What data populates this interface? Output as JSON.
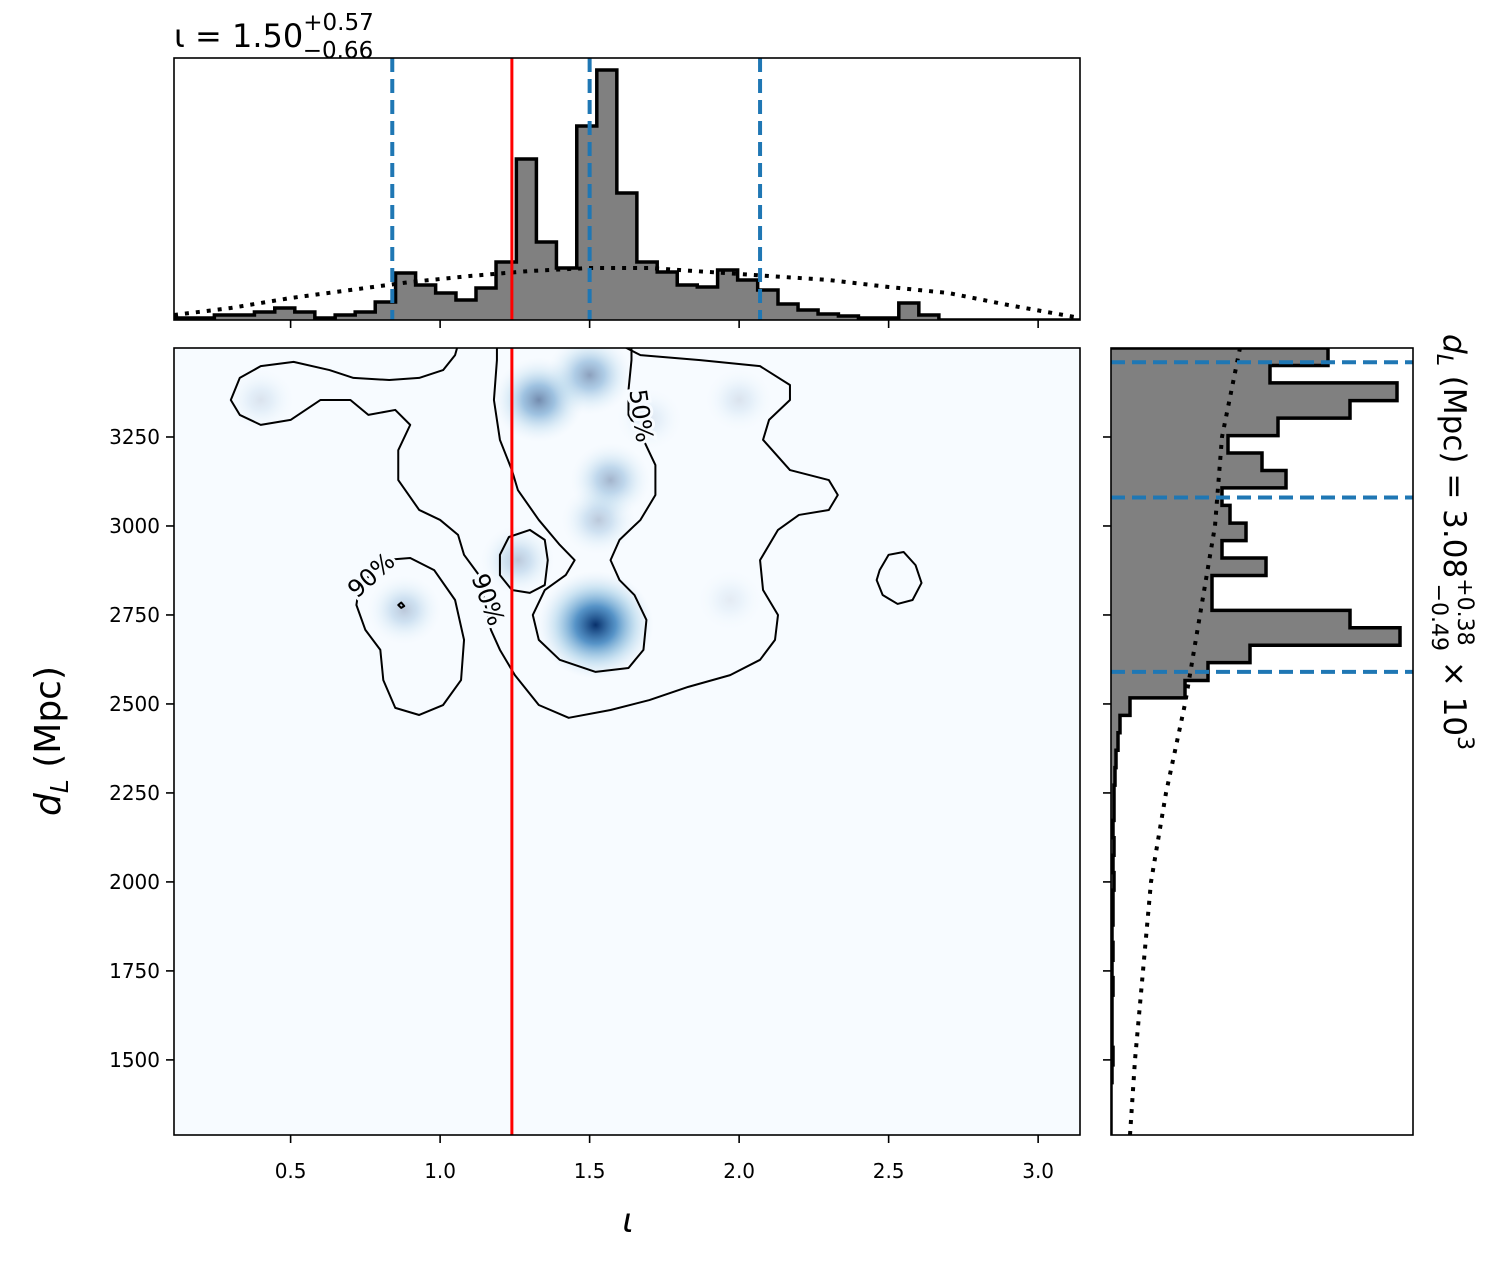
{
  "chart_data": [
    {
      "type": "histogram",
      "title": {
        "main": "ι = 1.50",
        "sup": "+0.57",
        "sub": "−0.66"
      },
      "bins": [
        0.11,
        0.177,
        0.245,
        0.312,
        0.379,
        0.447,
        0.514,
        0.581,
        0.649,
        0.716,
        0.783,
        0.851,
        0.918,
        0.985,
        1.053,
        1.12,
        1.187,
        1.255,
        1.322,
        1.389,
        1.457,
        1.524,
        1.591,
        1.658,
        1.726,
        1.793,
        1.86,
        1.928,
        1.995,
        2.062,
        2.13,
        2.197,
        2.264,
        2.332,
        2.399,
        2.466,
        2.534,
        2.601,
        2.668,
        2.736,
        2.803,
        2.87,
        2.938,
        3.005,
        3.072,
        3.14
      ],
      "counts": [
        0.02,
        0.02,
        0.05,
        0.05,
        0.08,
        0.12,
        0.08,
        0.02,
        0.05,
        0.08,
        0.18,
        0.47,
        0.35,
        0.27,
        0.2,
        0.32,
        0.58,
        1.61,
        0.78,
        0.52,
        1.94,
        2.5,
        1.27,
        0.58,
        0.48,
        0.35,
        0.33,
        0.5,
        0.4,
        0.3,
        0.16,
        0.1,
        0.06,
        0.04,
        0.02,
        0.02,
        0.17,
        0.05,
        0,
        0,
        0,
        0,
        0,
        0,
        0
      ],
      "color": "#808080",
      "xlim": [
        0.11,
        3.14
      ],
      "ylim": [
        0,
        2.62
      ],
      "prior": {
        "x": [
          0.11,
          0.3,
          0.5,
          0.7,
          0.9,
          1.1,
          1.3,
          1.5,
          1.7,
          1.9,
          2.1,
          2.3,
          2.5,
          2.7,
          2.9,
          3.14
        ],
        "values": [
          0.05,
          0.12,
          0.22,
          0.3,
          0.38,
          0.44,
          0.49,
          0.52,
          0.52,
          0.48,
          0.44,
          0.4,
          0.33,
          0.27,
          0.15,
          0.02
        ]
      },
      "quantiles": [
        0.84,
        1.5,
        2.07
      ],
      "injection": 1.24
    },
    {
      "type": "contour",
      "xlabel": "ι",
      "ylabel": {
        "symbol": "d",
        "sub": "L",
        "unit": " (Mpc)"
      },
      "xlim": [
        0.11,
        3.14
      ],
      "ylim": [
        1289,
        3500
      ],
      "xticks": [
        0.5,
        {
          "value": 1,
          "label": "1.0"
        },
        1.5,
        {
          "value": 2,
          "label": "2.0"
        },
        2.5,
        {
          "value": 3,
          "label": "3.0"
        }
      ],
      "yticks": [
        1500,
        1750,
        2000,
        2250,
        2500,
        2750,
        3000,
        3250
      ],
      "density_peaks": {
        "x": [
          1.52,
          1.33,
          1.5,
          1.57,
          1.53,
          1.26,
          0.88,
          0.4,
          2.0,
          1.97,
          1.7
        ],
        "y": [
          2722,
          3354,
          3424,
          3129,
          3017,
          2904,
          2764,
          3354,
          3354,
          2792,
          3300
        ],
        "weight": [
          1,
          0.55,
          0.45,
          0.35,
          0.25,
          0.25,
          0.25,
          0.12,
          0.12,
          0.08,
          0.1
        ]
      },
      "contours": [
        {
          "label": "90%",
          "x": [
            0.3,
            0.33,
            0.4,
            0.51,
            0.63,
            0.71,
            0.83,
            0.93,
            1.01,
            1.05,
            1.06,
            1.6,
            1.67,
            1.87,
            2.07,
            2.17,
            2.17,
            2.1,
            2.08,
            2.17,
            2.3,
            2.33,
            2.3,
            2.2,
            2.13,
            2.07,
            2.08,
            2.13,
            2.12,
            2.07,
            1.97,
            1.83,
            1.7,
            1.57,
            1.43,
            1.33,
            1.25,
            1.2,
            1.17,
            1.13,
            1.08,
            1.06,
            1.0,
            0.93,
            0.86,
            0.86,
            0.9,
            0.85,
            0.76,
            0.7,
            0.6,
            0.5,
            0.4,
            0.33
          ],
          "y": [
            3354,
            3416,
            3449,
            3461,
            3438,
            3416,
            3410,
            3416,
            3438,
            3480,
            3510,
            3510,
            3480,
            3466,
            3449,
            3396,
            3354,
            3298,
            3242,
            3157,
            3129,
            3087,
            3045,
            3031,
            2989,
            2904,
            2820,
            2750,
            2680,
            2624,
            2581,
            2548,
            2511,
            2483,
            2461,
            2497,
            2581,
            2652,
            2708,
            2862,
            2919,
            2975,
            3017,
            3045,
            3129,
            3213,
            3284,
            3326,
            3312,
            3354,
            3354,
            3298,
            3284,
            3312
          ]
        },
        {
          "label": "90%",
          "x": [
            0.75,
            0.81,
            0.9,
            0.98,
            1.05,
            1.08,
            1.07,
            1.01,
            0.93,
            0.85,
            0.81,
            0.8,
            0.75,
            0.72,
            0.73
          ],
          "y": [
            2848,
            2904,
            2910,
            2876,
            2792,
            2680,
            2567,
            2497,
            2469,
            2489,
            2567,
            2652,
            2708,
            2778,
            2834
          ]
        },
        {
          "label": "50%",
          "x": [
            1.19,
            1.19,
            1.18,
            1.2,
            1.24,
            1.26,
            1.33,
            1.4,
            1.45,
            1.42,
            1.35,
            1.31,
            1.33,
            1.4,
            1.52,
            1.63,
            1.68,
            1.69,
            1.65,
            1.6,
            1.57,
            1.6,
            1.67,
            1.72,
            1.72,
            1.68,
            1.63,
            1.63,
            1.64,
            1.64
          ],
          "y": [
            3510,
            3466,
            3354,
            3242,
            3157,
            3101,
            3017,
            2947,
            2904,
            2862,
            2820,
            2750,
            2680,
            2624,
            2590,
            2601,
            2652,
            2736,
            2806,
            2848,
            2904,
            2961,
            3017,
            3087,
            3171,
            3242,
            3312,
            3382,
            3466,
            3510
          ]
        },
        {
          "x": [
            1.2,
            1.23,
            1.3,
            1.35,
            1.36,
            1.35,
            1.3,
            1.24,
            1.2
          ],
          "y": [
            2919,
            2969,
            2989,
            2961,
            2904,
            2834,
            2812,
            2820,
            2862
          ]
        },
        {
          "x": [
            2.47,
            2.5,
            2.55,
            2.59,
            2.61,
            2.58,
            2.53,
            2.48,
            2.46
          ],
          "y": [
            2876,
            2919,
            2927,
            2890,
            2840,
            2792,
            2781,
            2806,
            2848
          ]
        },
        {
          "x": [
            0.87,
            0.88,
            0.87,
            0.86
          ],
          "y": [
            2785,
            2775,
            2770,
            2778
          ]
        }
      ],
      "injection": 1.24
    },
    {
      "type": "histogram",
      "orientation": "horizontal",
      "label": {
        "symbol": "d",
        "sub": "L",
        "text": " (Mpc) = 3.08",
        "sup": "+0.38",
        "subv": "−0.49",
        "times": " × 10",
        "exp": "3"
      },
      "bins": [
        1289,
        1338,
        1387,
        1436,
        1486,
        1535,
        1584,
        1633,
        1682,
        1731,
        1780,
        1830,
        1879,
        1928,
        1977,
        2026,
        2075,
        2124,
        2173,
        2223,
        2272,
        2321,
        2370,
        2419,
        2468,
        2517,
        2566,
        2616,
        2665,
        2714,
        2763,
        2812,
        2861,
        2910,
        2959,
        3008,
        3058,
        3107,
        3156,
        3205,
        3254,
        3303,
        3352,
        3402,
        3451,
        3500
      ],
      "counts": [
        0,
        0,
        0,
        0.01,
        0.02,
        0.01,
        0.01,
        0.01,
        0.02,
        0.01,
        0.02,
        0.01,
        0.02,
        0.02,
        0.03,
        0.02,
        0.03,
        0.02,
        0.03,
        0.03,
        0.04,
        0.05,
        0.07,
        0.09,
        0.19,
        0.74,
        0.97,
        1.39,
        2.89,
        2.39,
        1.01,
        1.01,
        1.55,
        1.11,
        1.35,
        1.19,
        1.11,
        1.75,
        1.51,
        1.17,
        1.67,
        2.39,
        2.86,
        1.59,
        2.17
      ],
      "color": "#808080",
      "ylim": [
        1289,
        3500
      ],
      "xlim": [
        0,
        3.02
      ],
      "prior": {
        "y": [
          1289,
          1500,
          1750,
          2000,
          2250,
          2500,
          2750,
          3000,
          3250,
          3500
        ],
        "values": [
          0.19,
          0.24,
          0.32,
          0.4,
          0.55,
          0.74,
          0.89,
          1.04,
          1.11,
          1.29
        ]
      },
      "quantiles": [
        2590,
        3080,
        3460
      ]
    }
  ]
}
